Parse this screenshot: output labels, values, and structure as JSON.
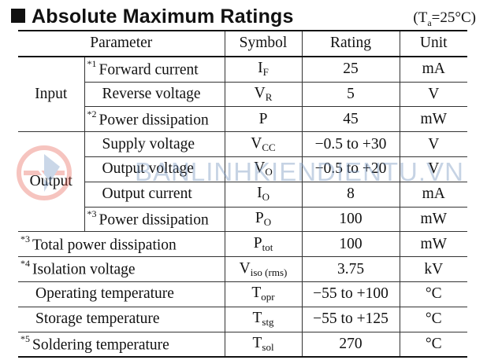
{
  "header": {
    "title": "Absolute Maximum Ratings",
    "condition_prefix": "(T",
    "condition_sub": "a",
    "condition_suffix": "=25°C)"
  },
  "columns": {
    "parameter": "Parameter",
    "symbol": "Symbol",
    "rating": "Rating",
    "unit": "Unit"
  },
  "groups": {
    "input": "Input",
    "output": "Output"
  },
  "rows": [
    {
      "note": "*1",
      "param": "Forward current",
      "sym": "I",
      "sym_sub": "F",
      "rating": "25",
      "unit": "mA"
    },
    {
      "note": "",
      "param": "Reverse voltage",
      "sym": "V",
      "sym_sub": "R",
      "rating": "5",
      "unit": "V"
    },
    {
      "note": "*2",
      "param": "Power dissipation",
      "sym": "P",
      "sym_sub": "",
      "rating": "45",
      "unit": "mW"
    },
    {
      "note": "",
      "param": "Supply voltage",
      "sym": "V",
      "sym_sub": "CC",
      "rating": "−0.5 to +30",
      "unit": "V"
    },
    {
      "note": "",
      "param": "Output voltage",
      "sym": "V",
      "sym_sub": "O",
      "rating": "−0.5 to +20",
      "unit": "V"
    },
    {
      "note": "",
      "param": "Output current",
      "sym": "I",
      "sym_sub": "O",
      "rating": "8",
      "unit": "mA"
    },
    {
      "note": "*3",
      "param": "Power dissipation",
      "sym": "P",
      "sym_sub": "O",
      "rating": "100",
      "unit": "mW"
    },
    {
      "note": "*3",
      "param": "Total power dissipation",
      "sym": "P",
      "sym_sub": "tot",
      "rating": "100",
      "unit": "mW"
    },
    {
      "note": "*4",
      "param": "Isolation voltage",
      "sym": "V",
      "sym_sub": "iso (rms)",
      "rating": "3.75",
      "unit": "kV"
    },
    {
      "note": "",
      "param": "Operating temperature",
      "sym": "T",
      "sym_sub": "opr",
      "rating": "−55 to +100",
      "unit": "°C"
    },
    {
      "note": "",
      "param": "Storage temperature",
      "sym": "T",
      "sym_sub": "stg",
      "rating": "−55 to +125",
      "unit": "°C"
    },
    {
      "note": "*5",
      "param": "Soldering temperature",
      "sym": "T",
      "sym_sub": "sol",
      "rating": "270",
      "unit": "°C"
    }
  ],
  "watermark": {
    "text": "BANLINHKIENDIENTU.VN",
    "logo_icon": "circular-logo-icon"
  },
  "colors": {
    "text": "#111111",
    "watermark_text": "#7896be",
    "watermark_logo_red": "#e8584a",
    "watermark_logo_blue": "#6b8fc0"
  }
}
